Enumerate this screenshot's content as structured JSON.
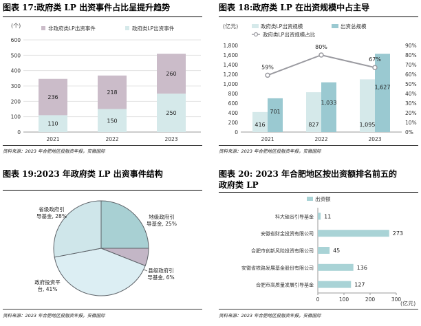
{
  "panels": {
    "p17": {
      "title": "图表 17:政府类 LP 出资事件占比呈提升趋势",
      "source": "资料来源：2023 年合肥地区投融资年报，安徽国际",
      "unit": "(个)"
    },
    "p18": {
      "title": "图表 18:政府类 LP 在出资规模中占主导",
      "source": "资料来源：2023 年合肥地区投融资年报，安徽国际",
      "unit": "(亿元)"
    },
    "p19": {
      "title": "图表 19:2023 年政府类 LP 出资事件结构",
      "source": "资料来源：2023 年合肥地区投融资年报，安徽国际"
    },
    "p20": {
      "title_line1": "图表 20: 2023 年合肥地区按出资额排名前五的",
      "title_line2": "府类 LP",
      "title_prefix": "政",
      "source": "资料来源：2023 年合肥地区投融资年报，安徽国际",
      "unit": "(亿元)"
    }
  },
  "chart_data": [
    {
      "id": "p17",
      "type": "bar",
      "stacked": true,
      "categories": [
        "2021",
        "2022",
        "2023"
      ],
      "series": [
        {
          "name": "政府类LP出资事件",
          "values": [
            110,
            150,
            250
          ],
          "color": "#d5e9ea"
        },
        {
          "name": "非政府类LP出资事件",
          "values": [
            236,
            218,
            260
          ],
          "color": "#cbbcc9"
        }
      ],
      "legend": [
        "非政府类LP出资事件",
        "政府类LP出资事件"
      ],
      "ylim": [
        0,
        600
      ],
      "yticks": [
        "0",
        "100",
        "200",
        "300",
        "400",
        "500",
        "600"
      ]
    },
    {
      "id": "p18",
      "type": "bar",
      "categories": [
        "2021",
        "2022",
        "2023"
      ],
      "series": [
        {
          "name": "政府类LP出资规模",
          "values": [
            416,
            827,
            1095
          ],
          "labels": [
            "416",
            "827",
            "1,095"
          ],
          "color": "#d5e9ea"
        },
        {
          "name": "出资总规模",
          "values": [
            701,
            1033,
            1627
          ],
          "labels": [
            "701",
            "1,033",
            "1,627"
          ],
          "color": "#9ac9d1"
        },
        {
          "name": "政府类LP出资规模占比",
          "type": "line",
          "values": [
            59,
            80,
            67
          ],
          "labels": [
            "59%",
            "80%",
            "67%"
          ],
          "color": "#9a9aa0"
        }
      ],
      "ylim": [
        0,
        1800
      ],
      "yticks": [
        "0",
        "200",
        "400",
        "600",
        "800",
        "1,000",
        "1,200",
        "1,400",
        "1,600",
        "1,800"
      ],
      "y2lim": [
        0,
        90
      ],
      "y2ticks": [
        "0%",
        "10%",
        "20%",
        "30%",
        "40%",
        "50%",
        "60%",
        "70%",
        "80%",
        "90%"
      ]
    },
    {
      "id": "p19",
      "type": "pie",
      "slices": [
        {
          "label": "地级政府引导基金",
          "pct": "25%",
          "value": 25,
          "color": "#a8d0d3"
        },
        {
          "label": "县级政府引导基金",
          "pct": "6%",
          "value": 6,
          "color": "#c3b6c6"
        },
        {
          "label": "政府投资平台",
          "pct": "41%",
          "value": 41,
          "color": "#dceef3"
        },
        {
          "label": "省级政府引导基金",
          "pct": "28%",
          "value": 28,
          "color": "#cfe6ea"
        }
      ],
      "labels": {
        "shengji": [
          "省级政府引",
          "导基金, 28%"
        ],
        "diji": [
          "地级政府引",
          "导基金, 25%"
        ],
        "xianji": [
          "县级政府引",
          "导基金, 6%"
        ],
        "pingtai": [
          "政府投资平",
          "台, 41%"
        ]
      }
    },
    {
      "id": "p20",
      "type": "bar",
      "orientation": "horizontal",
      "legend": "出资额",
      "categories": [
        "科大硅谷引导基金",
        "安徽省财金投资有限公司",
        "合肥市创新风险投资有限公司",
        "安徽省铁路发展基金股份有限公司",
        "合肥市高质量发展引导基金"
      ],
      "values": [
        11,
        273,
        45,
        136,
        127
      ],
      "color": "#a9d3d6",
      "xlim": [
        0,
        300
      ],
      "xticks": [
        "0",
        "100",
        "200",
        "300"
      ]
    }
  ]
}
